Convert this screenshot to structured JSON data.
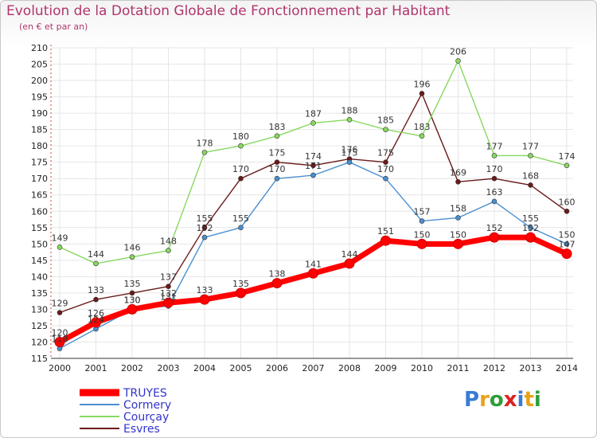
{
  "title": "Evolution de la Dotation Globale de Fonctionnement par Habitant",
  "subtitle": "(en € et par an)",
  "logo": {
    "text": "Proxiti",
    "letter_colors": [
      "#3a7bd5",
      "#e8a21a",
      "#2e9e3a",
      "#e02020",
      "#3a7bd5",
      "#e8a21a",
      "#2e9e3a"
    ]
  },
  "chart_data": {
    "type": "line",
    "title": "Evolution de la Dotation Globale de Fonctionnement par Habitant",
    "subtitle": "(en € et par an)",
    "xlabel": "",
    "ylabel": "",
    "x": [
      "2000",
      "2001",
      "2002",
      "2003",
      "2004",
      "2005",
      "2006",
      "2007",
      "2008",
      "2009",
      "2010",
      "2011",
      "2012",
      "2013",
      "2014"
    ],
    "ylim": [
      115,
      210
    ],
    "yticks": [
      115,
      120,
      125,
      130,
      135,
      140,
      145,
      150,
      155,
      160,
      165,
      170,
      175,
      180,
      185,
      190,
      195,
      200,
      205,
      210
    ],
    "grid": true,
    "legend_position": "bottom-left",
    "series": [
      {
        "name": "TRUYES",
        "color": "#ff0000",
        "emphasis": true,
        "values": [
          120,
          126,
          130,
          132,
          133,
          135,
          138,
          141,
          144,
          151,
          150,
          150,
          152,
          152,
          147
        ]
      },
      {
        "name": "Cormery",
        "color": "#4a8fcf",
        "values": [
          118,
          124,
          130,
          131,
          152,
          155,
          170,
          171,
          175,
          170,
          157,
          158,
          163,
          155,
          150
        ]
      },
      {
        "name": "Courçay",
        "color": "#88d860",
        "values": [
          149,
          144,
          146,
          148,
          178,
          180,
          183,
          187,
          188,
          185,
          183,
          206,
          177,
          177,
          174
        ]
      },
      {
        "name": "Esvres",
        "color": "#6b1a1a",
        "values": [
          129,
          133,
          135,
          137,
          155,
          170,
          175,
          174,
          176,
          175,
          196,
          169,
          170,
          168,
          160
        ]
      }
    ],
    "data_labels": [
      {
        "series": "TRUYES",
        "labels": [
          "120",
          "126",
          "130",
          "132",
          "133",
          "135",
          "138",
          "141",
          "144",
          "151",
          "150",
          "150",
          "152",
          "152",
          "147"
        ]
      },
      {
        "series": "Cormery",
        "labels": [
          "118",
          "124",
          "130",
          "131",
          "152",
          "155",
          "170",
          "171",
          "175",
          "170",
          "157",
          "158",
          "163",
          "155",
          "150"
        ]
      },
      {
        "series": "Courçay",
        "labels": [
          "149",
          "144",
          "146",
          "148",
          "178",
          "180",
          "183",
          "187",
          "188",
          "185",
          "183",
          "206",
          "177",
          "177",
          "174"
        ]
      },
      {
        "series": "Esvres",
        "labels": [
          "129",
          "133",
          "135",
          "137",
          "155",
          "170",
          "175",
          "174",
          "176",
          "175",
          "196",
          "169",
          "170",
          "168",
          "160"
        ]
      }
    ]
  }
}
